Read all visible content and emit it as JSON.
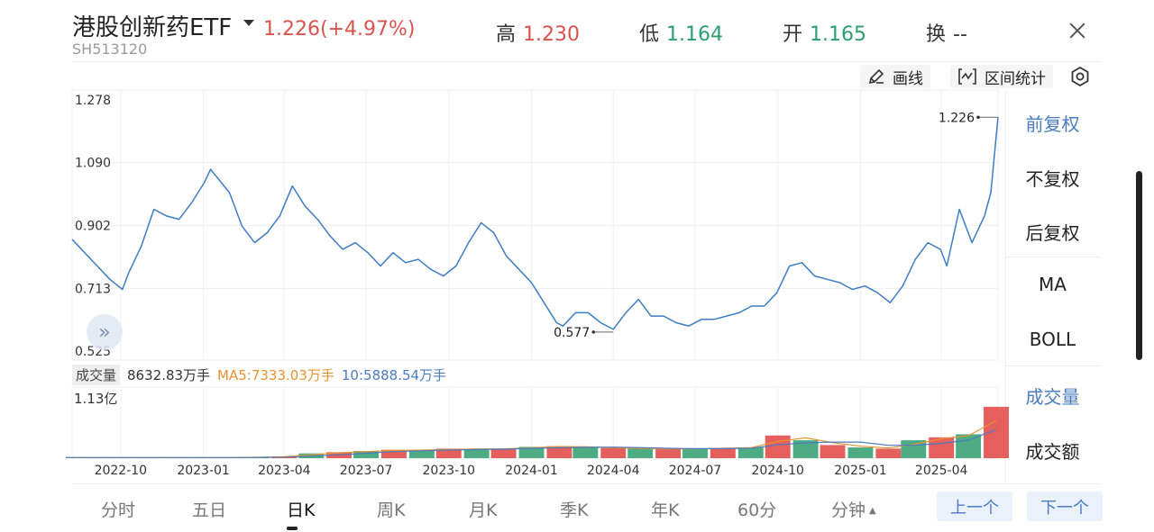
{
  "header": {
    "title": "港股创新药ETF",
    "price": "1.226(+4.97%)",
    "code": "SH513120",
    "high_label": "高",
    "high_value": "1.230",
    "low_label": "低",
    "low_value": "1.164",
    "open_label": "开",
    "open_value": "1.165",
    "turnover_label": "换",
    "turnover_value": "--"
  },
  "tools": {
    "draw": "画线",
    "range_stats": "区间统计"
  },
  "right_menu": {
    "items": [
      "前复权",
      "不复权",
      "后复权",
      "MA",
      "BOLL",
      "成交量",
      "成交额"
    ],
    "active": [
      "前复权",
      "成交量"
    ]
  },
  "volume": {
    "tag": "成交量",
    "value": "8632.83万手",
    "ma5": "MA5:7333.03万手",
    "ma10": "10:5888.54万手",
    "max_label": "1.13亿"
  },
  "tabs": [
    "分时",
    "五日",
    "日K",
    "周K",
    "月K",
    "季K",
    "年K",
    "60分",
    "分钟"
  ],
  "active_tab": "日K",
  "nav": {
    "prev": "上一个",
    "next": "下一个"
  },
  "colors": {
    "line": "#3e7cc4",
    "up": "#e0443f",
    "down": "#2e9e6e",
    "ma5": "#e8932f",
    "ma10": "#4a7cc2",
    "accent": "#4a7cc2"
  },
  "chart_data": [
    {
      "type": "line",
      "title": "",
      "x_ticks": [
        "2022-10",
        "2023-01",
        "2023-04",
        "2023-07",
        "2023-10",
        "2024-01",
        "2024-04",
        "2024-07",
        "2024-10",
        "2025-01",
        "2025-04"
      ],
      "y_ticks": [
        "1.278",
        "1.090",
        "0.902",
        "0.713",
        "0.525"
      ],
      "ylim": [
        0.525,
        1.278
      ],
      "xlim": [
        "2022-08-08",
        "2025-06-03"
      ],
      "max_label": "1.226",
      "min_label": "0.577",
      "series": [
        {
          "x": [
            "2022-08-08",
            "2022-08-15",
            "2022-08-29",
            "2022-09-05",
            "2022-09-19",
            "2022-10-03",
            "2022-10-10",
            "2022-10-24",
            "2022-11-07",
            "2022-11-21",
            "2022-12-05",
            "2022-12-19",
            "2023-01-02",
            "2023-01-09",
            "2023-01-30",
            "2023-02-13",
            "2023-02-27",
            "2023-03-13",
            "2023-03-27",
            "2023-04-10",
            "2023-04-24",
            "2023-05-08",
            "2023-05-22",
            "2023-06-05",
            "2023-06-19",
            "2023-07-03",
            "2023-07-17",
            "2023-07-31",
            "2023-08-14",
            "2023-08-28",
            "2023-09-11",
            "2023-09-25",
            "2023-10-09",
            "2023-10-23",
            "2023-11-06",
            "2023-11-20",
            "2023-12-04",
            "2023-12-18",
            "2024-01-01",
            "2024-01-15",
            "2024-01-29",
            "2024-02-05",
            "2024-02-19",
            "2024-03-04",
            "2024-03-18",
            "2024-04-01",
            "2024-04-15",
            "2024-04-29",
            "2024-05-13",
            "2024-05-27",
            "2024-06-10",
            "2024-06-24",
            "2024-07-08",
            "2024-07-22",
            "2024-08-05",
            "2024-08-19",
            "2024-09-02",
            "2024-09-16",
            "2024-09-30",
            "2024-10-14",
            "2024-10-28",
            "2024-11-11",
            "2024-11-25",
            "2024-12-09",
            "2024-12-23",
            "2025-01-06",
            "2025-01-20",
            "2025-02-03",
            "2025-02-17",
            "2025-03-03",
            "2025-03-17",
            "2025-03-31",
            "2025-04-07",
            "2025-04-21",
            "2025-05-05",
            "2025-05-19",
            "2025-05-26",
            "2025-06-03"
          ],
          "y": [
            0.86,
            0.84,
            0.8,
            0.78,
            0.74,
            0.71,
            0.76,
            0.84,
            0.95,
            0.93,
            0.92,
            0.97,
            1.03,
            1.07,
            1.0,
            0.9,
            0.85,
            0.88,
            0.93,
            1.02,
            0.96,
            0.92,
            0.87,
            0.83,
            0.85,
            0.82,
            0.78,
            0.82,
            0.79,
            0.8,
            0.77,
            0.75,
            0.78,
            0.85,
            0.91,
            0.88,
            0.81,
            0.77,
            0.73,
            0.67,
            0.61,
            0.6,
            0.64,
            0.64,
            0.61,
            0.59,
            0.64,
            0.68,
            0.63,
            0.63,
            0.61,
            0.6,
            0.62,
            0.62,
            0.63,
            0.64,
            0.66,
            0.66,
            0.7,
            0.78,
            0.79,
            0.75,
            0.74,
            0.73,
            0.71,
            0.72,
            0.7,
            0.67,
            0.72,
            0.8,
            0.85,
            0.83,
            0.78,
            0.95,
            0.85,
            0.93,
            1.0,
            1.226
          ]
        }
      ]
    },
    {
      "type": "bar",
      "title": "",
      "ylim": [
        0,
        1.13
      ],
      "max_label": "1.13亿",
      "series": [
        {
          "x": [
            "2022-08",
            "2022-09",
            "2022-10",
            "2022-11",
            "2022-12",
            "2023-01",
            "2023-02",
            "2023-03",
            "2023-04",
            "2023-05",
            "2023-06",
            "2023-07",
            "2023-08",
            "2023-09",
            "2023-10",
            "2023-11",
            "2023-12",
            "2024-01",
            "2024-02",
            "2024-03",
            "2024-04",
            "2024-05",
            "2024-06",
            "2024-07",
            "2024-08",
            "2024-09",
            "2024-10",
            "2024-11",
            "2024-12",
            "2025-01",
            "2025-02",
            "2025-03",
            "2025-04",
            "2025-05",
            "2025-06"
          ],
          "y": [
            0.01,
            0.01,
            0.01,
            0.01,
            0.01,
            0.01,
            0.01,
            0.02,
            0.03,
            0.08,
            0.1,
            0.12,
            0.14,
            0.13,
            0.16,
            0.15,
            0.16,
            0.19,
            0.2,
            0.18,
            0.17,
            0.16,
            0.15,
            0.16,
            0.17,
            0.18,
            0.38,
            0.3,
            0.22,
            0.18,
            0.16,
            0.3,
            0.35,
            0.4,
            0.86
          ]
        }
      ]
    }
  ]
}
